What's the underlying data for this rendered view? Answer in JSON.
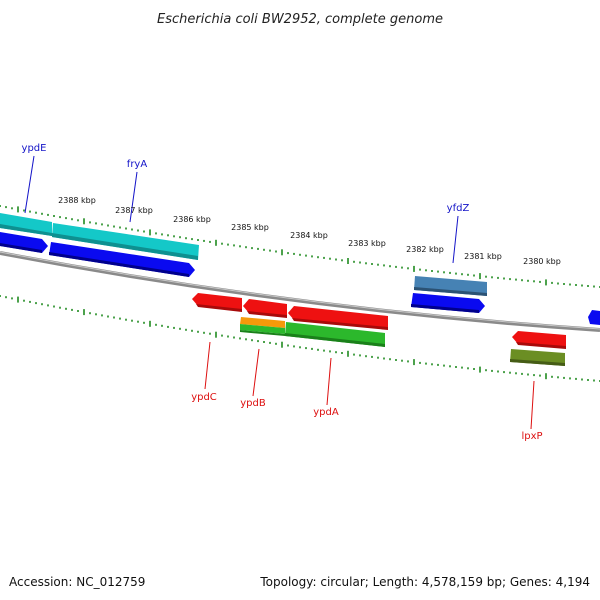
{
  "title": "Escherichia coli BW2952, complete genome",
  "footer": {
    "accession": "Accession: NC_012759",
    "summary": "Topology: circular; Length: 4,578,159 bp; Genes: 4,194"
  },
  "scale_labels": [
    "2388 kbp",
    "2387 kbp",
    "2386 kbp",
    "2385 kbp",
    "2384 kbp",
    "2383 kbp",
    "2382 kbp",
    "2381 kbp",
    "2380 kbp"
  ],
  "gene_labels": {
    "forward": [
      "ypdE",
      "fryA",
      "yfdZ"
    ],
    "reverse": [
      "ypdC",
      "ypdB",
      "ypdA",
      "lpxP"
    ]
  },
  "colors": {
    "backbone": "#888888",
    "tick": "#1f8a1f",
    "forward_label": "#1414c8",
    "reverse_label": "#dd1010",
    "cds_blue": "#0a0af0",
    "cds_cyan": "#14c8c8",
    "cds_steel": "#4682b4",
    "cds_red": "#ee1111",
    "cds_green": "#2cb82c",
    "cds_orange": "#f59a0a",
    "cds_olive": "#6b8e23"
  }
}
